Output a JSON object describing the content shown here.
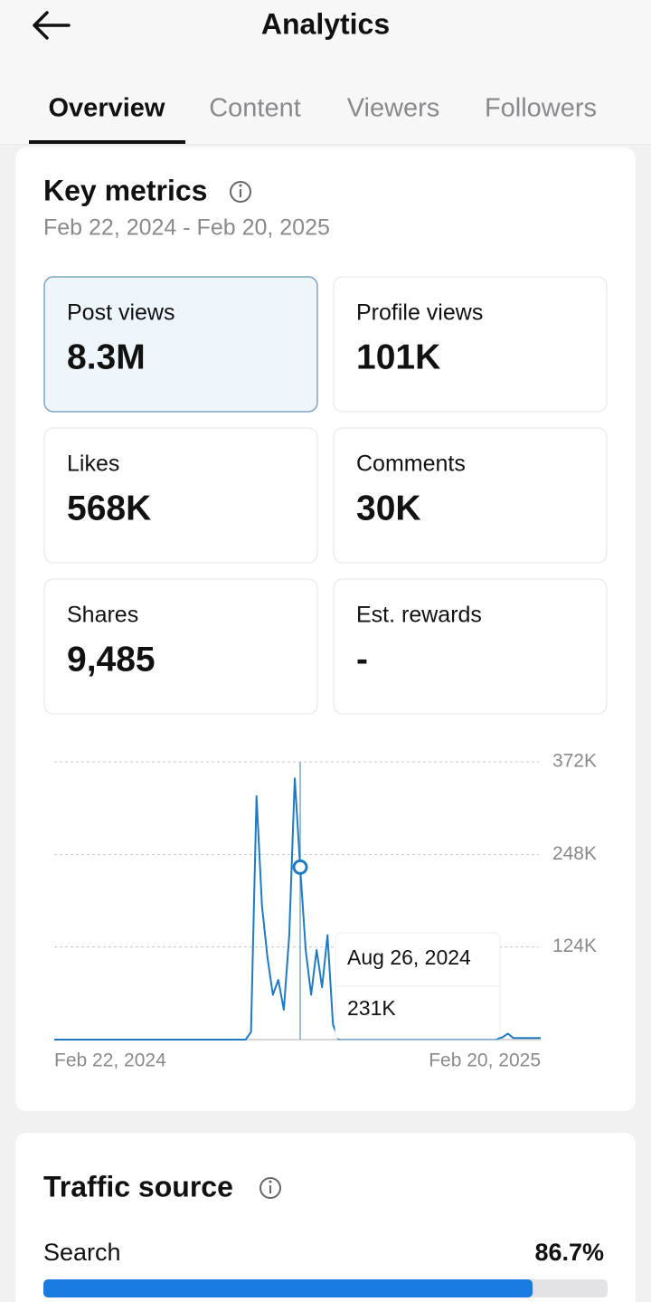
{
  "header": {
    "title": "Analytics"
  },
  "tabs": [
    "Overview",
    "Content",
    "Viewers",
    "Followers"
  ],
  "key_metrics": {
    "title": "Key metrics",
    "date_range": "Feb 22, 2024 - Feb 20, 2025",
    "cards": [
      {
        "label": "Post views",
        "value": "8.3M"
      },
      {
        "label": "Profile views",
        "value": "101K"
      },
      {
        "label": "Likes",
        "value": "568K"
      },
      {
        "label": "Comments",
        "value": "30K"
      },
      {
        "label": "Shares",
        "value": "9,485"
      },
      {
        "label": "Est. rewards",
        "value": "-"
      }
    ],
    "chart_data": {
      "type": "line",
      "color": "#1f7ac4",
      "x_labels": [
        "Feb 22, 2024",
        "Feb 20, 2025"
      ],
      "values": [
        0,
        0,
        0,
        0,
        0,
        0,
        0,
        0,
        0,
        0,
        0,
        0,
        0,
        0,
        0,
        0,
        0,
        0,
        0,
        0,
        0,
        0,
        0,
        0,
        0,
        0,
        0,
        0,
        0,
        0,
        0,
        0,
        0,
        0,
        0,
        0,
        10000,
        326000,
        180000,
        110000,
        60000,
        80000,
        40000,
        140000,
        350000,
        231000,
        120000,
        60000,
        120000,
        70000,
        140000,
        20000,
        1000,
        1000,
        1000,
        1000,
        1000,
        1000,
        1000,
        1000,
        1000,
        1000,
        1000,
        1000,
        1000,
        1000,
        1000,
        1000,
        1000,
        1000,
        1000,
        1000,
        1000,
        1000,
        1000,
        1000,
        1000,
        1000,
        1000,
        1000,
        1000,
        1000,
        3000,
        8000,
        2000,
        2000,
        2000,
        2000,
        2000,
        2000
      ],
      "ylim": [
        0,
        372000
      ],
      "yticks": [
        {
          "value": 124000,
          "label": "124K"
        },
        {
          "value": 248000,
          "label": "248K"
        },
        {
          "value": 372000,
          "label": "372K"
        }
      ],
      "grid": true,
      "tooltip": {
        "date": "Aug 26, 2024",
        "value": 231000,
        "label": "231K"
      }
    }
  },
  "traffic_source": {
    "title": "Traffic source",
    "items": [
      {
        "name": "Search",
        "value": 86.7,
        "label": "86.7%"
      }
    ]
  }
}
